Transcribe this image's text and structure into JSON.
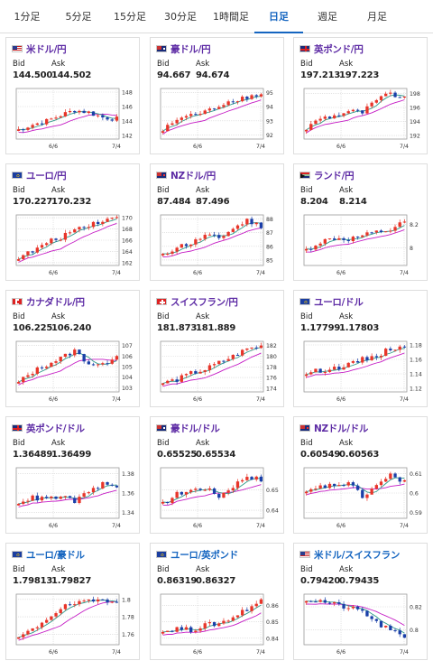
{
  "tabs": [
    {
      "label": "1分足",
      "active": false
    },
    {
      "label": "5分足",
      "active": false
    },
    {
      "label": "15分足",
      "active": false
    },
    {
      "label": "30分足",
      "active": false
    },
    {
      "label": "1時間足",
      "active": false
    },
    {
      "label": "日足",
      "active": true
    },
    {
      "label": "週足",
      "active": false
    },
    {
      "label": "月足",
      "active": false
    }
  ],
  "labels": {
    "bid": "Bid",
    "ask": "Ask"
  },
  "colors": {
    "up": "#e8352a",
    "down": "#1a3fa8",
    "ma_short": "#2e9a8a",
    "ma_long": "#c51cc5",
    "grid": "#d4d4d4"
  },
  "cards": [
    {
      "pair": "米ドル/円",
      "flag": "us",
      "bid": "144.500",
      "ask": "144.502"
    },
    {
      "pair": "豪ドル/円",
      "flag": "au",
      "bid": "94.667",
      "ask": "94.674"
    },
    {
      "pair": "英ポンド/円",
      "flag": "gb",
      "bid": "197.213",
      "ask": "197.223"
    },
    {
      "pair": "ユーロ/円",
      "flag": "eu",
      "bid": "170.227",
      "ask": "170.232"
    },
    {
      "pair": "NZドル/円",
      "flag": "nz",
      "bid": "87.484",
      "ask": "87.496"
    },
    {
      "pair": "ランド/円",
      "flag": "za",
      "bid": "8.204",
      "ask": "8.214"
    },
    {
      "pair": "カナダドル/円",
      "flag": "ca",
      "bid": "106.225",
      "ask": "106.240"
    },
    {
      "pair": "スイスフラン/円",
      "flag": "ch",
      "bid": "181.873",
      "ask": "181.889"
    },
    {
      "pair": "ユーロ/ドル",
      "flag": "eu",
      "bid": "1.17799",
      "ask": "1.17803"
    },
    {
      "pair": "英ポンド/ドル",
      "flag": "gb",
      "bid": "1.36489",
      "ask": "1.36499"
    },
    {
      "pair": "豪ドル/ドル",
      "flag": "au",
      "bid": "0.65525",
      "ask": "0.65534"
    },
    {
      "pair": "NZドル/ドル",
      "flag": "nz",
      "bid": "0.60549",
      "ask": "0.60563"
    },
    {
      "pair": "ユーロ/豪ドル",
      "flag": "eu",
      "bid": "1.79813",
      "ask": "1.79827",
      "blue": true
    },
    {
      "pair": "ユーロ/英ポンド",
      "flag": "eu",
      "bid": "0.86319",
      "ask": "0.86327",
      "blue": true
    },
    {
      "pair": "米ドル/スイスフラン",
      "flag": "us",
      "bid": "0.79420",
      "ask": "0.79435",
      "blue": true
    }
  ],
  "chart_data": [
    {
      "type": "candlestick",
      "yticks": [
        "148",
        "146",
        "144",
        "142"
      ],
      "ylim": [
        141.5,
        148.5
      ],
      "xticks": [
        "6/6",
        "7/4"
      ],
      "trend": [
        142.8,
        143.5,
        144.0,
        144.8,
        145.5,
        145.2,
        144.5,
        144.3
      ]
    },
    {
      "type": "candlestick",
      "yticks": [
        "95",
        "94",
        "93",
        "92"
      ],
      "ylim": [
        91.7,
        95.3
      ],
      "xticks": [
        "6/6",
        "7/4"
      ],
      "trend": [
        92.3,
        93.1,
        93.4,
        93.6,
        94.1,
        94.5,
        94.7,
        94.9
      ]
    },
    {
      "type": "candlestick",
      "yticks": [
        "198",
        "196",
        "194",
        "192"
      ],
      "ylim": [
        191.5,
        198.7
      ],
      "xticks": [
        "6/6",
        "7/4"
      ],
      "trend": [
        193.0,
        194.5,
        194.8,
        195.5,
        195.3,
        197.0,
        198.0,
        197.2
      ]
    },
    {
      "type": "candlestick",
      "yticks": [
        "170",
        "168",
        "166",
        "164",
        "162"
      ],
      "ylim": [
        161.5,
        170.5
      ],
      "xticks": [
        "6/6",
        "7/4"
      ],
      "trend": [
        163.0,
        164.0,
        165.5,
        166.5,
        168.0,
        168.8,
        169.5,
        170.1
      ]
    },
    {
      "type": "candlestick",
      "yticks": [
        "88",
        "87",
        "86",
        "85"
      ],
      "ylim": [
        84.6,
        88.3
      ],
      "xticks": [
        "6/6",
        "7/4"
      ],
      "trend": [
        85.3,
        86.0,
        86.2,
        86.8,
        86.6,
        87.3,
        87.9,
        87.5
      ]
    },
    {
      "type": "candlestick",
      "yticks": [
        "8.2",
        "8"
      ],
      "ylim": [
        7.85,
        8.28
      ],
      "xticks": [
        "6/6",
        "7/4"
      ],
      "trend": [
        7.98,
        8.05,
        8.08,
        8.07,
        8.1,
        8.13,
        8.15,
        8.22
      ]
    },
    {
      "type": "candlestick",
      "yticks": [
        "107",
        "106",
        "105",
        "104",
        "103"
      ],
      "ylim": [
        102.6,
        107.4
      ],
      "xticks": [
        "6/6",
        "7/4"
      ],
      "trend": [
        103.5,
        104.5,
        105.2,
        105.8,
        106.5,
        105.3,
        105.1,
        106.2
      ]
    },
    {
      "type": "candlestick",
      "yticks": [
        "182",
        "180",
        "178",
        "176",
        "174"
      ],
      "ylim": [
        173.3,
        182.8
      ],
      "xticks": [
        "6/6",
        "7/4"
      ],
      "trend": [
        175.0,
        175.6,
        176.8,
        177.5,
        178.8,
        180.0,
        181.4,
        181.9
      ]
    },
    {
      "type": "candlestick",
      "yticks": [
        "1.18",
        "1.16",
        "1.14",
        "1.12"
      ],
      "ylim": [
        1.115,
        1.185
      ],
      "xticks": [
        "6/6",
        "7/4"
      ],
      "trend": [
        1.141,
        1.145,
        1.148,
        1.152,
        1.16,
        1.165,
        1.175,
        1.179
      ]
    },
    {
      "type": "candlestick",
      "yticks": [
        "1.38",
        "1.36",
        "1.34"
      ],
      "ylim": [
        1.334,
        1.386
      ],
      "xticks": [
        "6/6",
        "7/4"
      ],
      "trend": [
        1.351,
        1.355,
        1.354,
        1.356,
        1.352,
        1.36,
        1.37,
        1.365
      ]
    },
    {
      "type": "candlestick",
      "yticks": [
        "0.65",
        "0.64"
      ],
      "ylim": [
        0.636,
        0.661
      ],
      "xticks": [
        "6/6",
        "7/4"
      ],
      "trend": [
        0.643,
        0.648,
        0.65,
        0.651,
        0.647,
        0.652,
        0.657,
        0.655
      ]
    },
    {
      "type": "candlestick",
      "yticks": [
        "0.61",
        "0.6",
        "0.59"
      ],
      "ylim": [
        0.587,
        0.613
      ],
      "xticks": [
        "6/6",
        "7/4"
      ],
      "trend": [
        0.6,
        0.603,
        0.604,
        0.605,
        0.598,
        0.604,
        0.609,
        0.606
      ]
    },
    {
      "type": "candlestick",
      "yticks": [
        "1.8",
        "1.78",
        "1.76"
      ],
      "ylim": [
        1.748,
        1.806
      ],
      "xticks": [
        "6/6",
        "7/4"
      ],
      "trend": [
        1.756,
        1.765,
        1.778,
        1.79,
        1.795,
        1.797,
        1.8,
        1.798
      ]
    },
    {
      "type": "candlestick",
      "yticks": [
        "0.86",
        "0.85",
        "0.84"
      ],
      "ylim": [
        0.836,
        0.867
      ],
      "xticks": [
        "6/6",
        "7/4"
      ],
      "trend": [
        0.844,
        0.846,
        0.845,
        0.848,
        0.849,
        0.853,
        0.858,
        0.863
      ]
    },
    {
      "type": "candlestick",
      "yticks": [
        "0.82",
        "0.8"
      ],
      "ylim": [
        0.787,
        0.831
      ],
      "xticks": [
        "6/6",
        "7/4"
      ],
      "trend": [
        0.826,
        0.825,
        0.822,
        0.819,
        0.816,
        0.806,
        0.799,
        0.794
      ]
    }
  ]
}
